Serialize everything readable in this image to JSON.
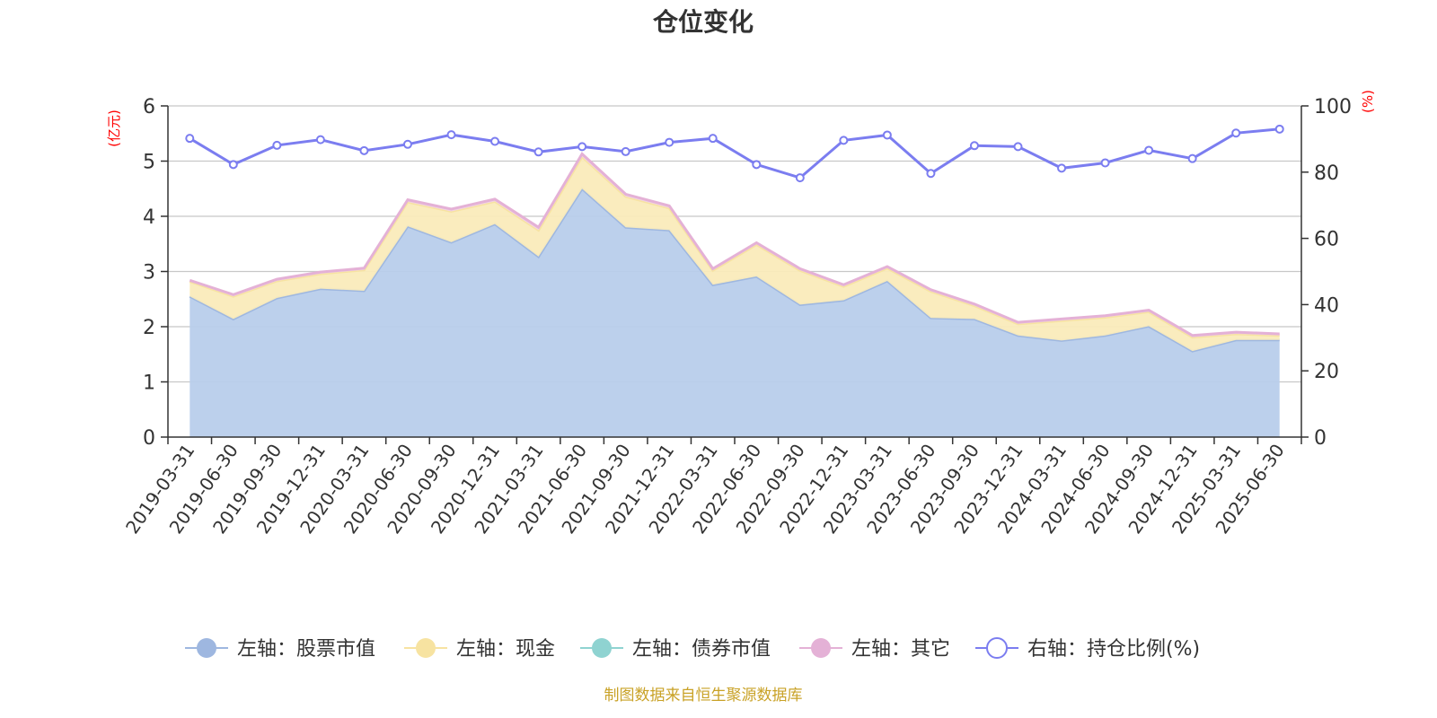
{
  "chart_data": {
    "type": "area",
    "title": "仓位变化",
    "left_unit": "(亿元)",
    "right_unit": "(%)",
    "left_ylim": [
      0,
      6
    ],
    "left_yticks": [
      "0",
      "1",
      "2",
      "3",
      "4",
      "5",
      "6"
    ],
    "right_ylim": [
      0,
      100
    ],
    "right_yticks": [
      "0",
      "20",
      "40",
      "60",
      "80",
      "100"
    ],
    "grid": true,
    "categories": [
      "2019-03-31",
      "2019-06-30",
      "2019-09-30",
      "2019-12-31",
      "2020-03-31",
      "2020-06-30",
      "2020-09-30",
      "2020-12-31",
      "2021-03-31",
      "2021-06-30",
      "2021-09-30",
      "2021-12-31",
      "2022-03-31",
      "2022-06-30",
      "2022-09-30",
      "2022-12-31",
      "2023-03-31",
      "2023-06-30",
      "2023-09-30",
      "2023-12-31",
      "2024-03-31",
      "2024-06-30",
      "2024-09-30",
      "2024-12-31",
      "2025-03-31",
      "2025-06-30"
    ],
    "series": [
      {
        "name": "左轴：股票市值",
        "axis": "left",
        "stack": true,
        "color": "#9eb7e0",
        "fill": "#b8cdeb",
        "values": [
          2.55,
          2.14,
          2.52,
          2.69,
          2.65,
          3.82,
          3.53,
          3.86,
          3.27,
          4.5,
          3.8,
          3.75,
          2.76,
          2.91,
          2.4,
          2.48,
          2.83,
          2.16,
          2.14,
          1.84,
          1.75,
          1.84,
          2.01,
          1.56,
          1.76,
          1.76
        ]
      },
      {
        "name": "左轴：现金",
        "axis": "left",
        "stack": true,
        "color": "#f7e3a1",
        "fill": "#faebbb",
        "values": [
          0.27,
          0.41,
          0.31,
          0.27,
          0.38,
          0.44,
          0.56,
          0.41,
          0.48,
          0.58,
          0.56,
          0.4,
          0.26,
          0.58,
          0.62,
          0.25,
          0.23,
          0.48,
          0.24,
          0.21,
          0.36,
          0.33,
          0.26,
          0.25,
          0.11,
          0.08
        ]
      },
      {
        "name": "左轴：债券市值",
        "axis": "left",
        "stack": true,
        "color": "#8fd3d1",
        "fill": "#8fd3d1",
        "values": [
          0,
          0,
          0,
          0,
          0,
          0,
          0,
          0,
          0,
          0,
          0,
          0,
          0,
          0,
          0,
          0,
          0,
          0,
          0,
          0,
          0,
          0,
          0,
          0,
          0,
          0
        ]
      },
      {
        "name": "左轴：其它",
        "axis": "left",
        "stack": true,
        "color": "#e4b1d6",
        "fill": "#f1d3e8",
        "values": [
          0.02,
          0.03,
          0.03,
          0.03,
          0.03,
          0.04,
          0.04,
          0.04,
          0.05,
          0.05,
          0.04,
          0.04,
          0.03,
          0.03,
          0.03,
          0.03,
          0.03,
          0.03,
          0.03,
          0.03,
          0.03,
          0.03,
          0.03,
          0.03,
          0.03,
          0.03
        ]
      },
      {
        "name": "右轴：持仓比例(%)",
        "axis": "right",
        "stack": false,
        "color": "#7b7df0",
        "values": [
          90.2,
          82.3,
          88.1,
          89.8,
          86.5,
          88.4,
          91.3,
          89.3,
          86.1,
          87.7,
          86.2,
          89.0,
          90.2,
          82.3,
          78.3,
          89.6,
          91.2,
          79.6,
          88.0,
          87.7,
          81.2,
          82.8,
          86.6,
          84.1,
          91.8,
          93.0
        ]
      }
    ],
    "legend_position": "bottom-center",
    "source_note": "制图数据来自恒生聚源数据库"
  }
}
